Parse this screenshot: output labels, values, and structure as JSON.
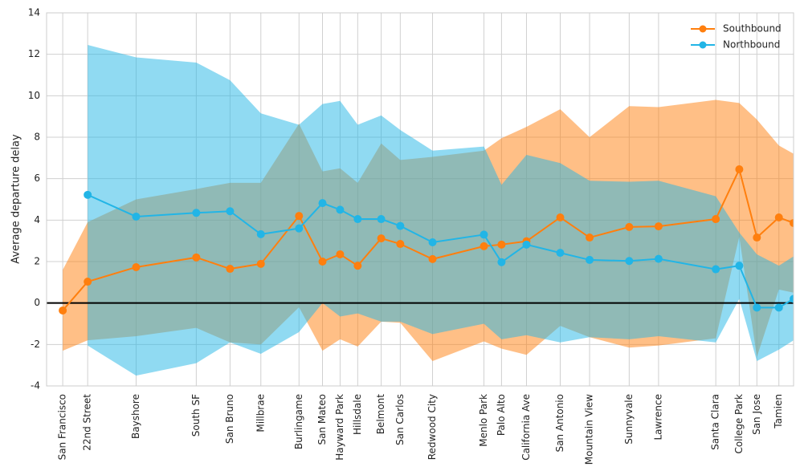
{
  "chart_data": {
    "type": "line",
    "ylabel": "Average departure delay",
    "x": [
      0.2,
      1.9,
      5.2,
      9.3,
      11.6,
      13.7,
      16.3,
      17.9,
      19.1,
      20.3,
      21.9,
      23.2,
      25.4,
      28.9,
      30.1,
      31.8,
      34.1,
      36.1,
      38.8,
      40.8,
      44.7,
      46.3,
      47.5,
      49.0,
      50.0
    ],
    "xlim": [
      -0.9,
      50.0
    ],
    "xticks": [
      {
        "value": 0.2,
        "label": "San Francisco"
      },
      {
        "value": 1.9,
        "label": "22nd Street"
      },
      {
        "value": 5.2,
        "label": "Bayshore"
      },
      {
        "value": 9.3,
        "label": "South SF"
      },
      {
        "value": 11.6,
        "label": "San Bruno"
      },
      {
        "value": 13.7,
        "label": "Millbrae"
      },
      {
        "value": 16.3,
        "label": "Burlingame"
      },
      {
        "value": 17.9,
        "label": "San Mateo"
      },
      {
        "value": 19.1,
        "label": "Hayward Park"
      },
      {
        "value": 20.3,
        "label": "Hillsdale"
      },
      {
        "value": 21.9,
        "label": "Belmont"
      },
      {
        "value": 23.2,
        "label": "San Carlos"
      },
      {
        "value": 25.4,
        "label": "Redwood City"
      },
      {
        "value": 28.9,
        "label": "Menlo Park"
      },
      {
        "value": 30.1,
        "label": "Palo Alto"
      },
      {
        "value": 31.8,
        "label": "California Ave"
      },
      {
        "value": 34.1,
        "label": "San Antonio"
      },
      {
        "value": 36.1,
        "label": "Mountain View"
      },
      {
        "value": 38.8,
        "label": "Sunnyvale"
      },
      {
        "value": 40.8,
        "label": "Lawrence"
      },
      {
        "value": 44.7,
        "label": "Santa Clara"
      },
      {
        "value": 46.3,
        "label": "College Park"
      },
      {
        "value": 47.5,
        "label": "San Jose"
      },
      {
        "value": 49.0,
        "label": "Tamien"
      }
    ],
    "ylim": [
      -4,
      14
    ],
    "yticks": [
      -4,
      -2,
      0,
      2,
      4,
      6,
      8,
      10,
      12,
      14
    ],
    "grid": true,
    "hline": 0,
    "legend": "upper right",
    "series": [
      {
        "name": "Southbound",
        "color": "#ff7f0e",
        "values": [
          -0.36,
          1.03,
          1.73,
          2.2,
          1.65,
          1.89,
          4.2,
          2.0,
          2.35,
          1.8,
          3.12,
          2.85,
          2.12,
          2.74,
          2.82,
          2.98,
          4.13,
          3.16,
          3.67,
          3.7,
          4.05,
          6.45,
          3.16,
          4.13,
          3.86
        ],
        "upper": [
          1.6,
          3.9,
          5.0,
          5.5,
          5.8,
          5.8,
          8.65,
          6.35,
          6.5,
          5.8,
          7.7,
          6.9,
          7.05,
          7.35,
          7.95,
          8.5,
          9.35,
          8.0,
          9.5,
          9.45,
          9.8,
          9.65,
          8.85,
          7.6,
          7.2
        ],
        "lower": [
          -2.3,
          -1.8,
          -1.6,
          -1.2,
          -1.9,
          -2.0,
          -0.2,
          -2.3,
          -1.75,
          -2.1,
          -0.9,
          -0.95,
          -2.8,
          -1.85,
          -2.2,
          -2.5,
          -1.1,
          -1.65,
          -2.15,
          -2.05,
          -1.7,
          3.2,
          -2.6,
          0.65,
          0.5
        ]
      },
      {
        "name": "Northbound",
        "color": "#22b5e6",
        "values": [
          null,
          5.22,
          4.17,
          4.35,
          4.43,
          3.32,
          3.6,
          4.82,
          4.5,
          4.05,
          4.05,
          3.72,
          2.93,
          3.3,
          1.97,
          2.82,
          2.42,
          2.08,
          2.03,
          2.13,
          1.63,
          1.8,
          -0.22,
          -0.22,
          0.2
        ],
        "upper": [
          null,
          12.45,
          11.85,
          11.6,
          10.75,
          9.15,
          8.6,
          9.6,
          9.75,
          8.6,
          9.05,
          8.35,
          7.35,
          7.55,
          5.7,
          7.15,
          6.75,
          5.9,
          5.85,
          5.9,
          5.15,
          3.4,
          2.35,
          1.8,
          2.25
        ],
        "lower": [
          null,
          -2.05,
          -3.5,
          -2.9,
          -1.9,
          -2.45,
          -1.4,
          0.0,
          -0.65,
          -0.5,
          -0.9,
          -0.9,
          -1.5,
          -1.0,
          -1.75,
          -1.55,
          -1.9,
          -1.65,
          -1.75,
          -1.6,
          -1.9,
          0.2,
          -2.8,
          -2.25,
          -1.8
        ]
      }
    ]
  }
}
